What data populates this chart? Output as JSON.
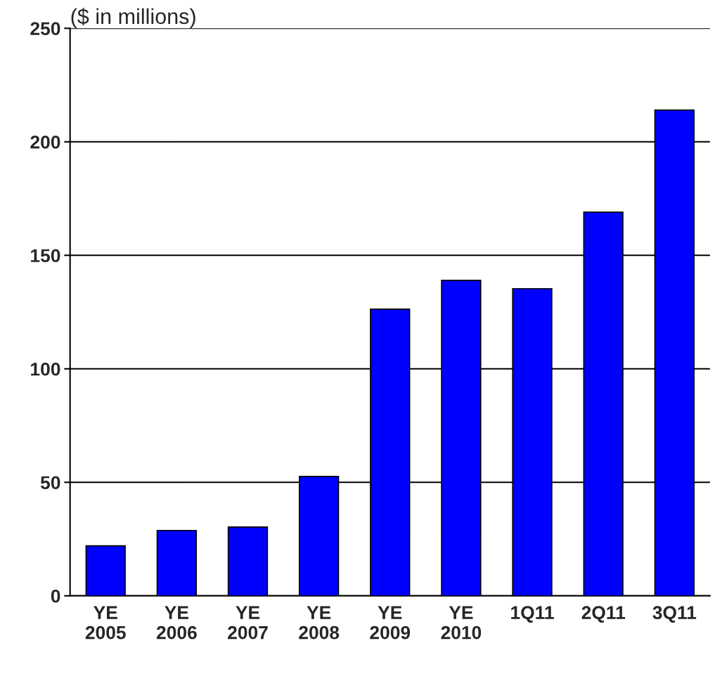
{
  "chart_data": {
    "type": "bar",
    "ylabel": "($ in millions)",
    "categories": [
      "YE\n2005",
      "YE\n2006",
      "YE\n2007",
      "YE\n2008",
      "YE\n2009",
      "YE\n2010",
      "1Q11",
      "2Q11",
      "3Q11"
    ],
    "values": [
      22,
      28.8,
      30.3,
      52.6,
      126.3,
      139,
      135.3,
      169,
      214
    ],
    "color": "#0000ff",
    "ylim": [
      0,
      250
    ],
    "yticks": [
      0,
      50,
      100,
      150,
      200,
      250
    ],
    "grid": "y"
  }
}
